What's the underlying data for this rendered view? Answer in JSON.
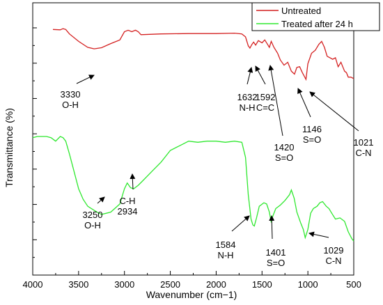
{
  "chart_data": {
    "type": "line",
    "title": "",
    "xlabel": "Wavenumber (cm−1)",
    "ylabel": "Transmittance (%)",
    "xlim": [
      4000,
      500
    ],
    "x_reversed": true,
    "x_ticks": [
      4000,
      3500,
      3000,
      2500,
      2000,
      1500,
      1000,
      500
    ],
    "y_tick_labels_shown": false,
    "grid": false,
    "legend_position": "top-right",
    "series": [
      {
        "name": "Untreated",
        "color": "#d42020",
        "points": [
          [
            3780,
            0.96
          ],
          [
            3700,
            0.955
          ],
          [
            3670,
            0.97
          ],
          [
            3640,
            0.96
          ],
          [
            3600,
            0.9
          ],
          [
            3500,
            0.8
          ],
          [
            3400,
            0.72
          ],
          [
            3330,
            0.7
          ],
          [
            3250,
            0.715
          ],
          [
            3150,
            0.77
          ],
          [
            3050,
            0.82
          ],
          [
            3000,
            0.93
          ],
          [
            2960,
            0.95
          ],
          [
            2920,
            0.93
          ],
          [
            2880,
            0.95
          ],
          [
            2850,
            0.93
          ],
          [
            2820,
            0.89
          ],
          [
            2600,
            0.9
          ],
          [
            2300,
            0.905
          ],
          [
            2000,
            0.905
          ],
          [
            1800,
            0.91
          ],
          [
            1720,
            0.9
          ],
          [
            1680,
            0.86
          ],
          [
            1650,
            0.74
          ],
          [
            1632,
            0.71
          ],
          [
            1610,
            0.76
          ],
          [
            1592,
            0.79
          ],
          [
            1570,
            0.75
          ],
          [
            1540,
            0.81
          ],
          [
            1500,
            0.78
          ],
          [
            1470,
            0.82
          ],
          [
            1440,
            0.76
          ],
          [
            1420,
            0.72
          ],
          [
            1400,
            0.8
          ],
          [
            1370,
            0.72
          ],
          [
            1330,
            0.64
          ],
          [
            1300,
            0.55
          ],
          [
            1260,
            0.48
          ],
          [
            1220,
            0.52
          ],
          [
            1180,
            0.4
          ],
          [
            1146,
            0.36
          ],
          [
            1120,
            0.45
          ],
          [
            1090,
            0.46
          ],
          [
            1060,
            0.38
          ],
          [
            1021,
            0.29
          ],
          [
            1000,
            0.5
          ],
          [
            960,
            0.64
          ],
          [
            920,
            0.68
          ],
          [
            880,
            0.76
          ],
          [
            850,
            0.8
          ],
          [
            820,
            0.72
          ],
          [
            790,
            0.6
          ],
          [
            760,
            0.58
          ],
          [
            730,
            0.56
          ],
          [
            700,
            0.58
          ],
          [
            670,
            0.46
          ],
          [
            640,
            0.52
          ],
          [
            600,
            0.4
          ],
          [
            580,
            0.38
          ],
          [
            560,
            0.32
          ],
          [
            530,
            0.32
          ],
          [
            500,
            0.3
          ]
        ],
        "annotations": [
          {
            "label": "3330",
            "label2": "O-H",
            "x": 3330
          },
          {
            "label": "1632",
            "label2": "N-H",
            "x": 1632
          },
          {
            "label": "1592",
            "label2": "C=C",
            "x": 1592
          },
          {
            "label": "1420",
            "label2": "S=O",
            "x": 1420
          },
          {
            "label": "1146",
            "label2": "S=O",
            "x": 1146
          },
          {
            "label": "1021",
            "label2": "C-N",
            "x": 1021
          }
        ]
      },
      {
        "name": "Treated after 24 h",
        "color": "#2ee82e",
        "points": [
          [
            4000,
            0.99
          ],
          [
            3950,
            1.0
          ],
          [
            3850,
            1.0
          ],
          [
            3800,
            0.99
          ],
          [
            3750,
            0.96
          ],
          [
            3700,
            1.0
          ],
          [
            3670,
            0.99
          ],
          [
            3640,
            0.96
          ],
          [
            3600,
            0.85
          ],
          [
            3550,
            0.7
          ],
          [
            3500,
            0.55
          ],
          [
            3450,
            0.46
          ],
          [
            3400,
            0.4
          ],
          [
            3300,
            0.35
          ],
          [
            3250,
            0.33
          ],
          [
            3150,
            0.35
          ],
          [
            3050,
            0.42
          ],
          [
            3000,
            0.55
          ],
          [
            2970,
            0.6
          ],
          [
            2934,
            0.56
          ],
          [
            2900,
            0.55
          ],
          [
            2850,
            0.58
          ],
          [
            2800,
            0.62
          ],
          [
            2700,
            0.7
          ],
          [
            2600,
            0.78
          ],
          [
            2500,
            0.88
          ],
          [
            2400,
            0.92
          ],
          [
            2300,
            0.96
          ],
          [
            2200,
            0.95
          ],
          [
            2100,
            0.96
          ],
          [
            2000,
            0.96
          ],
          [
            1900,
            0.95
          ],
          [
            1800,
            0.96
          ],
          [
            1720,
            0.95
          ],
          [
            1680,
            0.82
          ],
          [
            1650,
            0.5
          ],
          [
            1620,
            0.29
          ],
          [
            1600,
            0.24
          ],
          [
            1584,
            0.23
          ],
          [
            1560,
            0.3
          ],
          [
            1530,
            0.4
          ],
          [
            1480,
            0.43
          ],
          [
            1450,
            0.42
          ],
          [
            1420,
            0.35
          ],
          [
            1401,
            0.27
          ],
          [
            1380,
            0.32
          ],
          [
            1350,
            0.38
          ],
          [
            1300,
            0.41
          ],
          [
            1250,
            0.45
          ],
          [
            1200,
            0.5
          ],
          [
            1180,
            0.54
          ],
          [
            1150,
            0.47
          ],
          [
            1120,
            0.35
          ],
          [
            1080,
            0.26
          ],
          [
            1050,
            0.2
          ],
          [
            1029,
            0.13
          ],
          [
            1000,
            0.2
          ],
          [
            970,
            0.34
          ],
          [
            940,
            0.38
          ],
          [
            900,
            0.4
          ],
          [
            870,
            0.43
          ],
          [
            840,
            0.44
          ],
          [
            800,
            0.4
          ],
          [
            770,
            0.38
          ],
          [
            740,
            0.34
          ],
          [
            700,
            0.29
          ],
          [
            650,
            0.3
          ],
          [
            600,
            0.27
          ],
          [
            560,
            0.18
          ],
          [
            520,
            0.12
          ],
          [
            500,
            0.1
          ]
        ],
        "annotations": [
          {
            "label": "3250",
            "label2": "O-H",
            "x": 3250
          },
          {
            "label": "C-H",
            "label2": "2934",
            "x": 2934
          },
          {
            "label": "1584",
            "label2": "N-H",
            "x": 1584
          },
          {
            "label": "1401",
            "label2": "S=O",
            "x": 1401
          },
          {
            "label": "1029",
            "label2": "C-N",
            "x": 1029
          }
        ]
      }
    ]
  }
}
